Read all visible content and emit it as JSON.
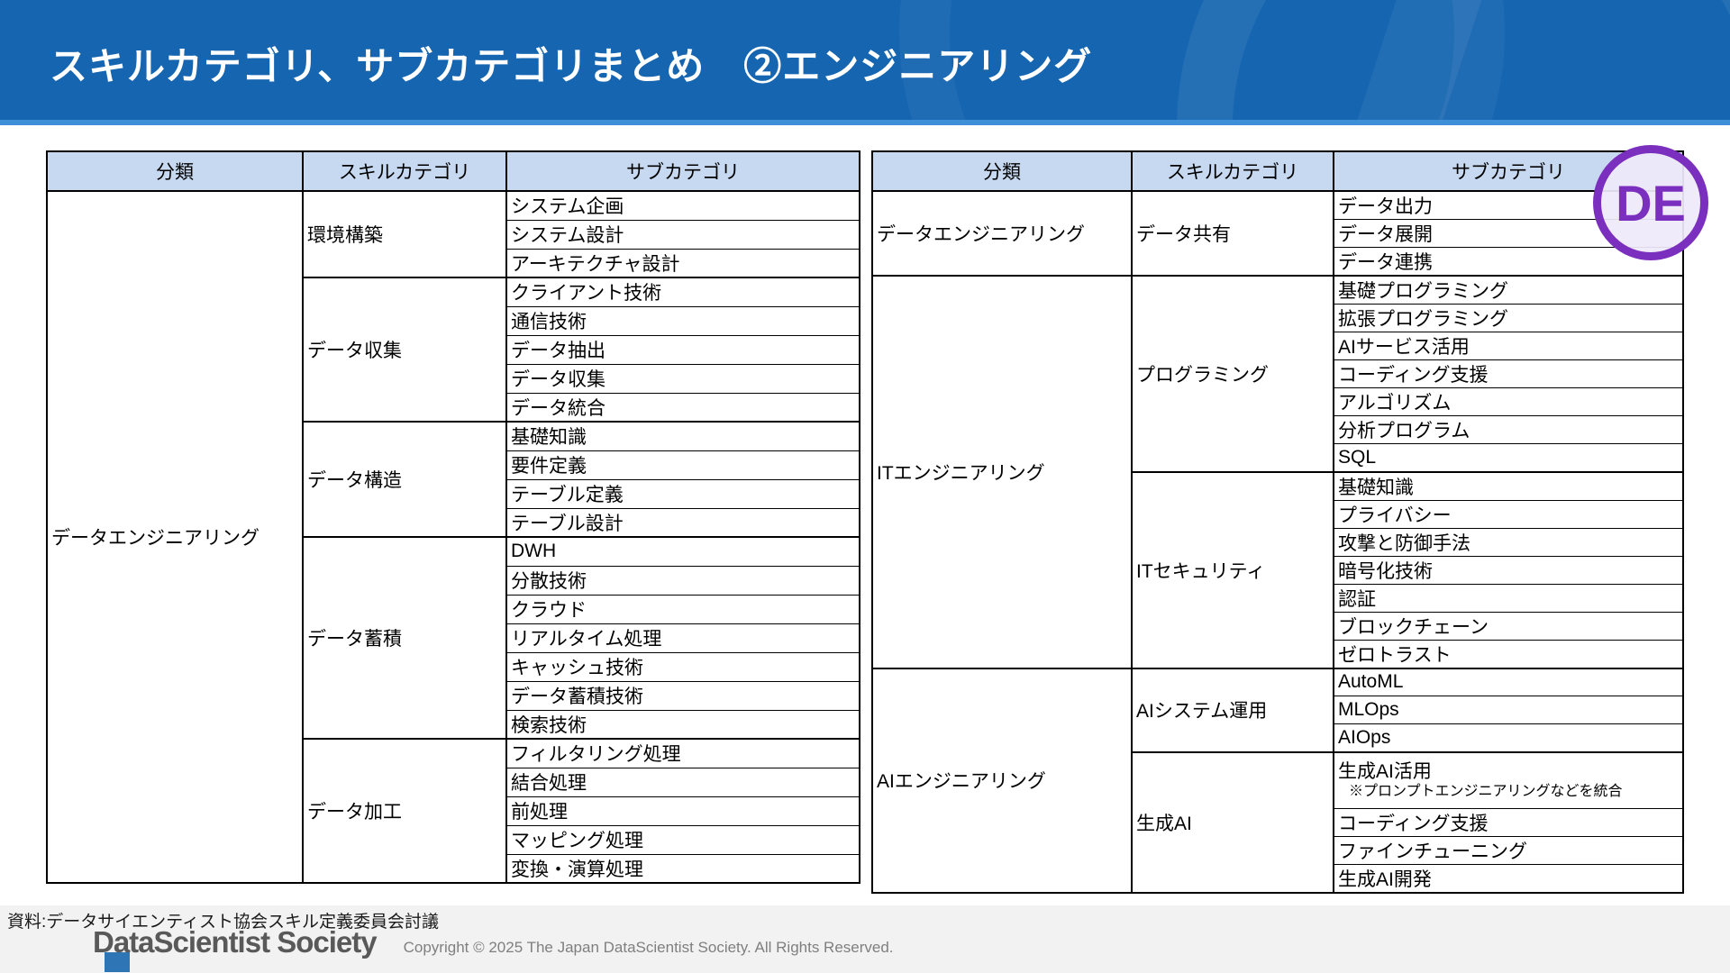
{
  "title": "スキルカテゴリ、サブカテゴリまとめ　②エンジニアリング",
  "badge": {
    "label": "DE"
  },
  "colors": {
    "header_blue": "#1565B0",
    "header_strip_blue": "#3E8ED8",
    "table_header_bg": "#C6D9F1",
    "highlight_red": "#E03131",
    "badge_purple": "#7B2FBE",
    "footer_bg": "#F2F2F2",
    "corner_square_blue": "#2E75B6"
  },
  "tables": {
    "headers": [
      "分類",
      "スキルカテゴリ",
      "サブカテゴリ"
    ],
    "left": {
      "sections": [
        {
          "classification": "データエンジニアリング",
          "groups": [
            {
              "category": "環境構築",
              "subs": [
                "システム企画",
                "システム設計",
                "アーキテクチャ設計"
              ]
            },
            {
              "category": "データ収集",
              "subs": [
                "クライアント技術",
                "通信技術",
                "データ抽出",
                "データ収集",
                "データ統合"
              ]
            },
            {
              "category": "データ構造",
              "subs": [
                "基礎知識",
                "要件定義",
                "テーブル定義",
                "テーブル設計"
              ]
            },
            {
              "category": "データ蓄積",
              "subs": [
                "DWH",
                "分散技術",
                "クラウド",
                "リアルタイム処理",
                "キャッシュ技術",
                "データ蓄積技術",
                "検索技術"
              ]
            },
            {
              "category": "データ加工",
              "subs": [
                "フィルタリング処理",
                "結合処理",
                "前処理",
                "マッピング処理",
                "変換・演算処理"
              ]
            }
          ]
        }
      ]
    },
    "right": {
      "sections": [
        {
          "classification": "データエンジニアリング",
          "groups": [
            {
              "category": "データ共有",
              "subs": [
                "データ出力",
                "データ展開",
                "データ連携"
              ]
            }
          ]
        },
        {
          "classification": "ITエンジニアリング",
          "groups": [
            {
              "category": "プログラミング",
              "subs": [
                "基礎プログラミング",
                "拡張プログラミング",
                "AIサービス活用",
                "コーディング支援",
                "アルゴリズム",
                "分析プログラム",
                "SQL"
              ]
            },
            {
              "category": "ITセキュリティ",
              "subs": [
                "基礎知識",
                "プライバシー",
                "攻撃と防御手法",
                "暗号化技術",
                "認証",
                "ブロックチェーン",
                "ゼロトラスト"
              ]
            }
          ]
        },
        {
          "classification": "AIエンジニアリング",
          "groups": [
            {
              "category": "AIシステム運用",
              "subs": [
                "AutoML",
                "MLOps",
                "AIOps"
              ]
            },
            {
              "category": "生成AI",
              "subs": [
                {
                  "label": "生成AI活用",
                  "note": "※プロンプトエンジニアリングなどを統合",
                  "highlight": true
                },
                "コーディング支援",
                "ファインチューニング",
                "生成AI開発"
              ]
            }
          ]
        }
      ]
    }
  },
  "footer": {
    "source": "資料:データサイエンティスト協会スキル定義委員会討議",
    "logo": "DataScientist Society",
    "copyright": "Copyright © 2025 The Japan DataScientist Society. All Rights Reserved."
  }
}
